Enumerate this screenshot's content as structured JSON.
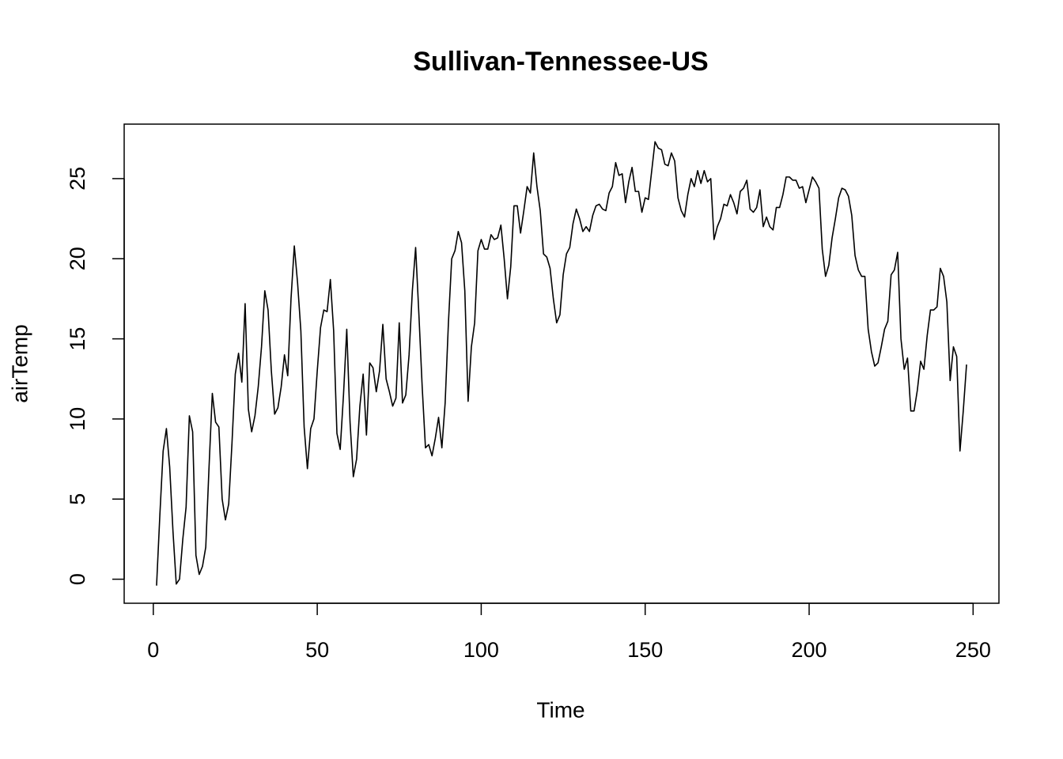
{
  "chart_data": {
    "type": "line",
    "title": "Sullivan-Tennessee-US",
    "xlabel": "Time",
    "ylabel": "airTemp",
    "x": [
      1,
      2,
      3,
      4,
      5,
      6,
      7,
      8,
      9,
      10,
      11,
      12,
      13,
      14,
      15,
      16,
      17,
      18,
      19,
      20,
      21,
      22,
      23,
      24,
      25,
      26,
      27,
      28,
      29,
      30,
      31,
      32,
      33,
      34,
      35,
      36,
      37,
      38,
      39,
      40,
      41,
      42,
      43,
      44,
      45,
      46,
      47,
      48,
      49,
      50,
      51,
      52,
      53,
      54,
      55,
      56,
      57,
      58,
      59,
      60,
      61,
      62,
      63,
      64,
      65,
      66,
      67,
      68,
      69,
      70,
      71,
      72,
      73,
      74,
      75,
      76,
      77,
      78,
      79,
      80,
      81,
      82,
      83,
      84,
      85,
      86,
      87,
      88,
      89,
      90,
      91,
      92,
      93,
      94,
      95,
      96,
      97,
      98,
      99,
      100,
      101,
      102,
      103,
      104,
      105,
      106,
      107,
      108,
      109,
      110,
      111,
      112,
      113,
      114,
      115,
      116,
      117,
      118,
      119,
      120,
      121,
      122,
      123,
      124,
      125,
      126,
      127,
      128,
      129,
      130,
      131,
      132,
      133,
      134,
      135,
      136,
      137,
      138,
      139,
      140,
      141,
      142,
      143,
      144,
      145,
      146,
      147,
      148,
      149,
      150,
      151,
      152,
      153,
      154,
      155,
      156,
      157,
      158,
      159,
      160,
      161,
      162,
      163,
      164,
      165,
      166,
      167,
      168,
      169,
      170,
      171,
      172,
      173,
      174,
      175,
      176,
      177,
      178,
      179,
      180,
      181,
      182,
      183,
      184,
      185,
      186,
      187,
      188,
      189,
      190,
      191,
      192,
      193,
      194,
      195,
      196,
      197,
      198,
      199,
      200,
      201,
      202,
      203,
      204,
      205,
      206,
      207,
      208,
      209,
      210,
      211,
      212,
      213,
      214,
      215,
      216,
      217,
      218,
      219,
      220,
      221,
      222,
      223,
      224,
      225,
      226,
      227,
      228,
      229,
      230,
      231,
      232,
      233,
      234,
      235,
      236,
      237,
      238,
      239,
      240,
      241,
      242,
      243,
      244,
      245,
      246,
      247,
      248
    ],
    "values": [
      -0.4,
      4,
      8,
      9.4,
      7,
      3,
      -0.3,
      0,
      2.5,
      4.5,
      10.2,
      9.2,
      1.5,
      0.3,
      0.8,
      2,
      7,
      11.6,
      9.8,
      9.5,
      5,
      3.7,
      4.7,
      8.5,
      12.8,
      14.1,
      12.3,
      17.2,
      10.6,
      9.2,
      10.2,
      12,
      14.5,
      18,
      16.8,
      13,
      10.3,
      10.7,
      12,
      14,
      12.7,
      17.5,
      20.8,
      18.5,
      15.5,
      9.5,
      6.9,
      9.4,
      10,
      13,
      15.7,
      16.8,
      16.7,
      18.7,
      15.5,
      9.1,
      8.1,
      11.5,
      15.6,
      9.8,
      6.4,
      7.5,
      10.8,
      12.8,
      9,
      13.5,
      13.2,
      11.7,
      13,
      15.9,
      12.5,
      11.7,
      10.8,
      11.3,
      16,
      11,
      11.5,
      14,
      18,
      20.7,
      16.5,
      12,
      8.2,
      8.4,
      7.7,
      8.8,
      10.1,
      8.2,
      11,
      16,
      20,
      20.5,
      21.7,
      21,
      18,
      11.1,
      14.5,
      16,
      20.5,
      21.2,
      20.6,
      20.6,
      21.5,
      21.2,
      21.3,
      22.1,
      20,
      17.5,
      19.5,
      23.3,
      23.3,
      21.6,
      23,
      24.5,
      24.1,
      26.6,
      24.5,
      23,
      20.3,
      20.1,
      19.4,
      17.5,
      16,
      16.5,
      19,
      20.3,
      20.7,
      22.2,
      23.1,
      22.5,
      21.7,
      22,
      21.7,
      22.7,
      23.3,
      23.4,
      23.1,
      23,
      24.1,
      24.5,
      26,
      25.2,
      25.3,
      23.5,
      24.8,
      25.7,
      24.2,
      24.2,
      22.9,
      23.8,
      23.7,
      25.5,
      27.3,
      26.9,
      26.8,
      25.9,
      25.8,
      26.6,
      26.1,
      23.8,
      23,
      22.6,
      24,
      25,
      24.5,
      25.5,
      24.7,
      25.5,
      24.8,
      25,
      21.2,
      22,
      22.5,
      23.4,
      23.3,
      24,
      23.5,
      22.8,
      24.2,
      24.4,
      24.9,
      23.1,
      22.9,
      23.2,
      24.3,
      22,
      22.6,
      22,
      21.8,
      23.2,
      23.2,
      24,
      25.1,
      25.1,
      24.9,
      24.9,
      24.4,
      24.5,
      23.5,
      24.3,
      25.1,
      24.8,
      24.4,
      20.6,
      18.9,
      19.6,
      21.3,
      22.5,
      23.8,
      24.4,
      24.3,
      23.9,
      22.7,
      20.2,
      19.3,
      18.9,
      18.9,
      15.6,
      14.2,
      13.3,
      13.5,
      14.5,
      15.6,
      16.1,
      19,
      19.3,
      20.4,
      15,
      13.1,
      13.8,
      10.5,
      10.5,
      11.8,
      13.6,
      13.1,
      15.2,
      16.8,
      16.8,
      17,
      19.4,
      18.9,
      17.3,
      12.4,
      14.5,
      13.9,
      8,
      10.5,
      13.4
    ],
    "color": "#000000",
    "xlim": [
      -8.88,
      257.88
    ],
    "xticks": [
      0,
      50,
      100,
      150,
      200,
      250
    ],
    "ylim": [
      -1.5,
      28.4
    ],
    "yticks": [
      0,
      5,
      10,
      15,
      20,
      25
    ],
    "grid": false
  }
}
